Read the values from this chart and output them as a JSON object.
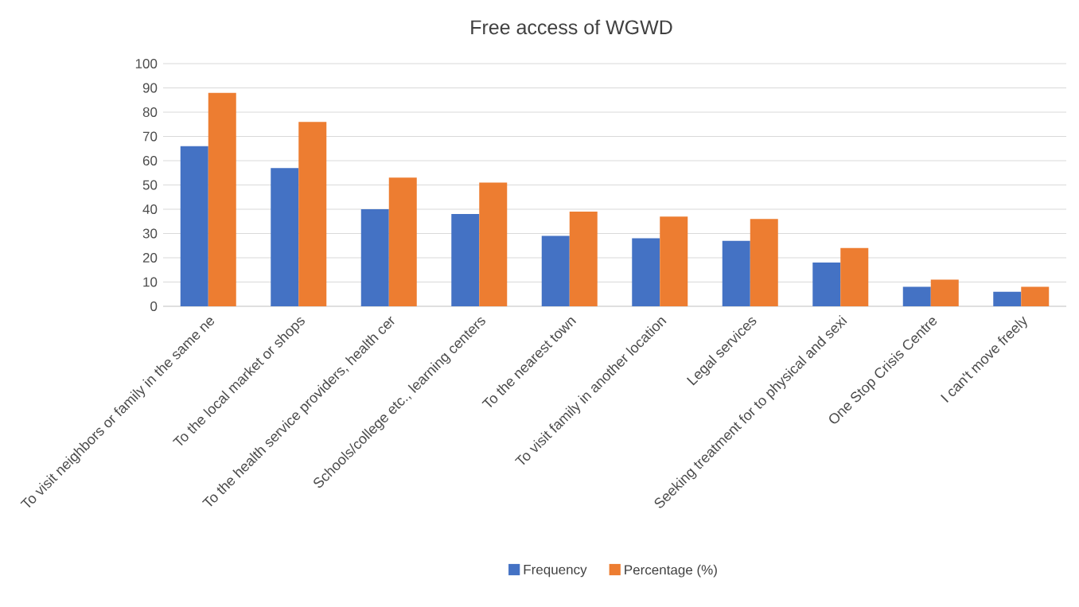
{
  "chart_data": {
    "type": "bar",
    "title": "Free access of WGWD",
    "categories": [
      "To visit neighbors or family in the same ne",
      "To the local market or shops",
      "To the health service providers, health cer",
      "Schools/college etc., learning centers",
      "To the nearest town",
      "To visit family in another location",
      "Legal services",
      "Seeking treatment for to physical and sexi",
      "One Stop Crisis Centre",
      "I can't move freely"
    ],
    "series": [
      {
        "name": "Frequency",
        "color": "#4472c4",
        "values": [
          66,
          57,
          40,
          38,
          29,
          28,
          27,
          18,
          8,
          6
        ]
      },
      {
        "name": "Percentage (%)",
        "color": "#ed7d31",
        "values": [
          88,
          76,
          53,
          51,
          39,
          37,
          36,
          24,
          11,
          8
        ]
      }
    ],
    "ylim": [
      0,
      100
    ],
    "yticks": [
      0,
      10,
      20,
      30,
      40,
      50,
      60,
      70,
      80,
      90,
      100
    ],
    "grid": "y",
    "legend": "bottom"
  }
}
